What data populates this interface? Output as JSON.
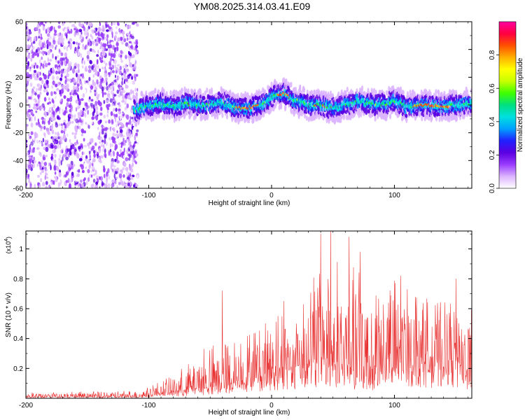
{
  "title": "YM08.2025.314.03.41.E09",
  "chart_data": [
    {
      "type": "heatmap",
      "name": "spectrogram",
      "xlabel": "Height of straight line (km)",
      "ylabel": "Frequency (Hz)",
      "xlim": [
        -200,
        163
      ],
      "ylim": [
        -60,
        60
      ],
      "x_ticks": [
        "-200",
        "-100",
        "0",
        "100"
      ],
      "x_tick_values": [
        -200,
        -100,
        0,
        100
      ],
      "y_ticks": [
        "60",
        "40",
        "20",
        "0",
        "-20",
        "-40",
        "-60"
      ],
      "y_tick_values": [
        60,
        40,
        20,
        0,
        -20,
        -40,
        -60
      ],
      "colorbar": {
        "label": "Normalized spectral amplitude",
        "range": [
          0,
          1
        ],
        "ticks": [
          "0.0",
          "0.2",
          "0.4",
          "0.6",
          "0.8"
        ],
        "tick_values": [
          0.0,
          0.2,
          0.4,
          0.6,
          0.8
        ],
        "colors": [
          "#ffffff",
          "#dcb4ff",
          "#9a3cff",
          "#5a00e0",
          "#2020ff",
          "#00a0ff",
          "#00e0e0",
          "#00e080",
          "#40ff00",
          "#c8ff00",
          "#ffff00",
          "#ffb000",
          "#ff5000",
          "#ff0040",
          "#ff00a0"
        ]
      },
      "ridge_frequency_track": {
        "x": [
          -112,
          -100,
          -90,
          -80,
          -70,
          -60,
          -50,
          -40,
          -30,
          -20,
          -10,
          0,
          5,
          10,
          15,
          20,
          25,
          30,
          40,
          50,
          60,
          70,
          80,
          90,
          100,
          110,
          120,
          130,
          140,
          150,
          163
        ],
        "y": [
          -4,
          -1,
          1,
          -1,
          1,
          0,
          0,
          2,
          -2,
          -2,
          0,
          5,
          8,
          8,
          6,
          3,
          2,
          0,
          0,
          -2,
          0,
          3,
          1,
          0,
          3,
          -1,
          0,
          0,
          -1,
          0,
          1
        ]
      },
      "noise_region_x": [
        -200,
        -112
      ]
    },
    {
      "type": "line",
      "name": "snr",
      "xlabel": "Height of straight line (km)",
      "ylabel": "SNR (10 * v/v)",
      "y_multiplier": "(x10",
      "y_multiplier_exp": "4",
      "y_multiplier_close": ")",
      "xlim": [
        -200,
        163
      ],
      "ylim": [
        0,
        1.12
      ],
      "x_ticks": [
        "-200",
        "-100",
        "0",
        "100"
      ],
      "x_tick_values": [
        -200,
        -100,
        0,
        100
      ],
      "y_ticks": [
        "0.2",
        "0.4",
        "0.6",
        "0.8",
        "1"
      ],
      "y_tick_values": [
        0.2,
        0.4,
        0.6,
        0.8,
        1.0
      ],
      "color": "#e83030",
      "envelope": {
        "x": [
          -200,
          -110,
          -100,
          -80,
          -60,
          -40,
          -20,
          0,
          20,
          30,
          40,
          50,
          60,
          80,
          100,
          120,
          140,
          163
        ],
        "base": [
          0.01,
          0.01,
          0.02,
          0.04,
          0.06,
          0.09,
          0.12,
          0.17,
          0.2,
          0.22,
          0.25,
          0.22,
          0.2,
          0.18,
          0.2,
          0.25,
          0.22,
          0.2
        ],
        "peak": [
          0.04,
          0.05,
          0.09,
          0.15,
          0.3,
          0.4,
          0.42,
          0.55,
          0.6,
          0.78,
          0.95,
          0.95,
          0.9,
          0.85,
          0.8,
          0.7,
          0.65,
          0.62
        ]
      },
      "spikes": [
        {
          "x": -40,
          "y": 0.72
        },
        {
          "x": -55,
          "y": 0.33
        },
        {
          "x": 10,
          "y": 0.65
        },
        {
          "x": 40,
          "y": 1.1
        },
        {
          "x": 48,
          "y": 1.12
        },
        {
          "x": 63,
          "y": 1.08
        },
        {
          "x": 72,
          "y": 0.98
        },
        {
          "x": 105,
          "y": 0.82
        },
        {
          "x": 150,
          "y": 0.8
        }
      ]
    }
  ]
}
